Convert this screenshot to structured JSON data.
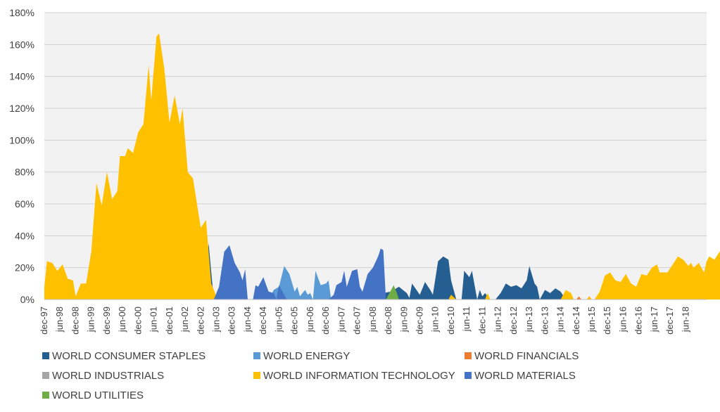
{
  "chart_data": {
    "type": "area",
    "title": "",
    "xlabel": "",
    "ylabel": "",
    "ylim": [
      0,
      180
    ],
    "y_ticks": [
      "0%",
      "20%",
      "40%",
      "60%",
      "80%",
      "100%",
      "120%",
      "140%",
      "160%",
      "180%"
    ],
    "x_ticks": [
      "dec-97",
      "jun-98",
      "dec-98",
      "jun-99",
      "dec-99",
      "jun-00",
      "dec-00",
      "jun-01",
      "dec-01",
      "jun-02",
      "dec-02",
      "jun-03",
      "dec-03",
      "jun-04",
      "dec-04",
      "jun-05",
      "dec-05",
      "jun-06",
      "dec-06",
      "jun-07",
      "dec-07",
      "jun-08",
      "dec-08",
      "jun-09",
      "dec-09",
      "jun-10",
      "dec-10",
      "jun-11",
      "dec-11",
      "jun-12",
      "dec-12",
      "jun-13",
      "dec-13",
      "jun-14",
      "dec-14",
      "jun-15",
      "dec-15",
      "jun-16",
      "dec-16",
      "jun-17",
      "dec-17",
      "jun-18"
    ],
    "grid": true,
    "legend_position": "bottom",
    "plot_background": "#f2f2f2",
    "series": [
      {
        "name": "WORLD CONSUMER STAPLES",
        "color": "#255e91",
        "points": [
          [
            "jun-02",
            0
          ],
          [
            "aug-02",
            12
          ],
          [
            "oct-02",
            8
          ],
          [
            "dec-02",
            14
          ],
          [
            "jan-03",
            12
          ],
          [
            "mar-03",
            35
          ],
          [
            "may-03",
            0
          ],
          [
            "sep-08",
            0
          ],
          [
            "oct-08",
            4
          ],
          [
            "jan-09",
            5
          ],
          [
            "apr-09",
            8
          ],
          [
            "jul-09",
            4
          ],
          [
            "aug-09",
            1
          ],
          [
            "sep-09",
            10
          ],
          [
            "dec-09",
            3
          ],
          [
            "feb-10",
            11
          ],
          [
            "apr-10",
            6
          ],
          [
            "may-10",
            3
          ],
          [
            "jul-10",
            24
          ],
          [
            "sep-10",
            27
          ],
          [
            "nov-10",
            25
          ],
          [
            "dec-10",
            12
          ],
          [
            "feb-11",
            0
          ],
          [
            "apr-11",
            0
          ],
          [
            "may-11",
            18
          ],
          [
            "jul-11",
            14
          ],
          [
            "aug-11",
            18
          ],
          [
            "oct-11",
            0
          ],
          [
            "nov-11",
            6
          ],
          [
            "dec-11",
            2
          ],
          [
            "jan-12",
            4
          ],
          [
            "mar-12",
            0
          ],
          [
            "may-12",
            0
          ],
          [
            "jul-12",
            4
          ],
          [
            "sep-12",
            10
          ],
          [
            "nov-12",
            8
          ],
          [
            "jan-13",
            9
          ],
          [
            "mar-13",
            7
          ],
          [
            "may-13",
            12
          ],
          [
            "jun-13",
            21
          ],
          [
            "aug-13",
            10
          ],
          [
            "sep-13",
            8
          ],
          [
            "oct-13",
            0
          ],
          [
            "dec-13",
            6
          ],
          [
            "feb-14",
            4
          ],
          [
            "apr-14",
            7
          ],
          [
            "jun-14",
            5
          ],
          [
            "aug-14",
            0
          ]
        ]
      },
      {
        "name": "WORLD ENERGY",
        "color": "#5b9bd5",
        "points": [
          [
            "feb-01",
            0
          ],
          [
            "apr-01",
            15
          ],
          [
            "jun-01",
            16
          ],
          [
            "jul-01",
            0
          ],
          [
            "aug-01",
            20
          ],
          [
            "oct-01",
            8
          ],
          [
            "dec-01",
            20
          ],
          [
            "feb-02",
            23
          ],
          [
            "apr-02",
            10
          ],
          [
            "may-02",
            4
          ],
          [
            "jul-02",
            11
          ],
          [
            "aug-02",
            0
          ],
          [
            "feb-05",
            0
          ],
          [
            "apr-05",
            6
          ],
          [
            "jun-05",
            8
          ],
          [
            "aug-05",
            21
          ],
          [
            "oct-05",
            16
          ],
          [
            "dec-05",
            5
          ],
          [
            "jan-06",
            8
          ],
          [
            "feb-06",
            2
          ],
          [
            "apr-06",
            6
          ],
          [
            "may-06",
            3
          ],
          [
            "jun-06",
            4
          ],
          [
            "jul-06",
            0
          ],
          [
            "aug-06",
            18
          ],
          [
            "oct-06",
            9
          ],
          [
            "dec-06",
            10
          ],
          [
            "jan-07",
            12
          ],
          [
            "feb-07",
            0
          ]
        ]
      },
      {
        "name": "WORLD FINANCIALS",
        "color": "#ed7d31",
        "points": [
          [
            "dec-14",
            0
          ],
          [
            "jan-15",
            2
          ],
          [
            "feb-15",
            0
          ],
          [
            "apr-15",
            0
          ],
          [
            "may-15",
            2
          ],
          [
            "jun-15",
            0
          ],
          [
            "aug-15",
            0
          ],
          [
            "oct-15",
            3
          ],
          [
            "dec-15",
            1
          ],
          [
            "jan-16",
            0
          ]
        ]
      },
      {
        "name": "WORLD INDUSTRIALS",
        "color": "#a5a5a5",
        "points": []
      },
      {
        "name": "WORLD INFORMATION TECHNOLOGY",
        "color": "#ffc000",
        "points": [
          [
            "dec-97",
            8
          ],
          [
            "jan-98",
            24
          ],
          [
            "mar-98",
            23
          ],
          [
            "may-98",
            18
          ],
          [
            "jul-98",
            22
          ],
          [
            "sep-98",
            13
          ],
          [
            "nov-98",
            12
          ],
          [
            "dec-98",
            2
          ],
          [
            "feb-99",
            10
          ],
          [
            "apr-99",
            10
          ],
          [
            "jun-99",
            30
          ],
          [
            "aug-99",
            73
          ],
          [
            "oct-99",
            59
          ],
          [
            "dec-99",
            80
          ],
          [
            "feb-00",
            63
          ],
          [
            "apr-00",
            68
          ],
          [
            "may-00",
            90
          ],
          [
            "jul-00",
            90
          ],
          [
            "aug-00",
            95
          ],
          [
            "oct-00",
            92
          ],
          [
            "dec-00",
            105
          ],
          [
            "feb-01",
            110
          ],
          [
            "apr-01",
            147
          ],
          [
            "may-01",
            125
          ],
          [
            "jul-01",
            165
          ],
          [
            "aug-01",
            167
          ],
          [
            "oct-01",
            145
          ],
          [
            "dec-01",
            111
          ],
          [
            "feb-02",
            128
          ],
          [
            "apr-02",
            110
          ],
          [
            "may-02",
            120
          ],
          [
            "jul-02",
            80
          ],
          [
            "sep-02",
            76
          ],
          [
            "nov-02",
            55
          ],
          [
            "dec-02",
            45
          ],
          [
            "feb-03",
            50
          ],
          [
            "apr-03",
            10
          ],
          [
            "jun-03",
            2
          ],
          [
            "aug-03",
            2
          ],
          [
            "oct-03",
            0
          ],
          [
            "nov-10",
            0
          ],
          [
            "dec-10",
            3
          ],
          [
            "feb-11",
            0
          ],
          [
            "jan-12",
            0
          ],
          [
            "feb-12",
            4
          ],
          [
            "mar-12",
            0
          ],
          [
            "jun-14",
            0
          ],
          [
            "aug-14",
            6
          ],
          [
            "oct-14",
            4
          ],
          [
            "nov-14",
            0
          ],
          [
            "apr-15",
            0
          ],
          [
            "may-15",
            2
          ],
          [
            "jun-15",
            0
          ],
          [
            "jul-15",
            0
          ],
          [
            "sep-15",
            5
          ],
          [
            "nov-15",
            15
          ],
          [
            "jan-16",
            17
          ],
          [
            "mar-16",
            12
          ],
          [
            "may-16",
            11
          ],
          [
            "jul-16",
            16
          ],
          [
            "sep-16",
            10
          ],
          [
            "nov-16",
            8
          ],
          [
            "jan-17",
            16
          ],
          [
            "mar-17",
            15
          ],
          [
            "may-17",
            20
          ],
          [
            "jul-17",
            22
          ],
          [
            "aug-17",
            17
          ],
          [
            "sep-17",
            17
          ],
          [
            "nov-17",
            17
          ],
          [
            "jan-18",
            22
          ],
          [
            "mar-18",
            27
          ],
          [
            "may-18",
            25
          ],
          [
            "jul-18",
            21
          ],
          [
            "aug-18",
            23
          ],
          [
            "sep-18",
            20
          ],
          [
            "nov-18",
            23
          ],
          [
            "jan-19",
            17
          ],
          [
            "feb-19",
            24
          ],
          [
            "mar-19",
            27
          ],
          [
            "may-19",
            25
          ],
          [
            "jul-19",
            30
          ],
          [
            "sep-19",
            33
          ],
          [
            "oct-19",
            25
          ],
          [
            "dec-19",
            34
          ],
          [
            "jan-20",
            26
          ],
          [
            "jan-20",
            0
          ]
        ]
      },
      {
        "name": "WORLD MATERIALS",
        "color": "#4472c4",
        "points": [
          [
            "may-03",
            0
          ],
          [
            "jul-03",
            8
          ],
          [
            "sep-03",
            30
          ],
          [
            "nov-03",
            34
          ],
          [
            "jan-04",
            23
          ],
          [
            "mar-04",
            17
          ],
          [
            "apr-04",
            12
          ],
          [
            "may-04",
            19
          ],
          [
            "jun-04",
            0
          ],
          [
            "aug-04",
            0
          ],
          [
            "sep-04",
            9
          ],
          [
            "oct-04",
            8
          ],
          [
            "dec-04",
            14
          ],
          [
            "feb-05",
            5
          ],
          [
            "apr-05",
            4
          ],
          [
            "may-05",
            0
          ],
          [
            "jun-05",
            9
          ],
          [
            "aug-05",
            3
          ],
          [
            "sep-05",
            0
          ],
          [
            "jan-07",
            0
          ],
          [
            "mar-07",
            3
          ],
          [
            "apr-07",
            9
          ],
          [
            "jun-07",
            11
          ],
          [
            "jul-07",
            18
          ],
          [
            "aug-07",
            8
          ],
          [
            "oct-07",
            18
          ],
          [
            "dec-07",
            19
          ],
          [
            "jan-08",
            8
          ],
          [
            "feb-08",
            5
          ],
          [
            "apr-08",
            16
          ],
          [
            "jun-08",
            20
          ],
          [
            "aug-08",
            27
          ],
          [
            "sep-08",
            32
          ],
          [
            "oct-08",
            31
          ],
          [
            "nov-08",
            0
          ]
        ]
      },
      {
        "name": "WORLD UTILITIES",
        "color": "#70ad47",
        "points": [
          [
            "nov-08",
            0
          ],
          [
            "jan-09",
            6
          ],
          [
            "feb-09",
            9
          ],
          [
            "mar-09",
            5
          ],
          [
            "apr-09",
            0
          ]
        ]
      }
    ]
  },
  "legend": [
    {
      "label": "WORLD CONSUMER STAPLES",
      "color": "#255e91"
    },
    {
      "label": "WORLD ENERGY",
      "color": "#5b9bd5"
    },
    {
      "label": "WORLD FINANCIALS",
      "color": "#ed7d31"
    },
    {
      "label": "WORLD INDUSTRIALS",
      "color": "#a5a5a5"
    },
    {
      "label": "WORLD INFORMATION TECHNOLOGY",
      "color": "#ffc000"
    },
    {
      "label": "WORLD MATERIALS",
      "color": "#4472c4"
    },
    {
      "label": "WORLD UTILITIES",
      "color": "#70ad47"
    }
  ]
}
